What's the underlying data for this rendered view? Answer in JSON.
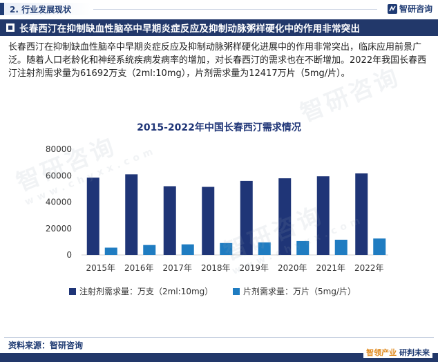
{
  "header": {
    "section": "2. 行业发展现状",
    "brand": "智研咨询",
    "headline": "长春西汀在抑制缺血性脑卒中早期炎症反应及抑制动脉粥样硬化中的作用非常突出"
  },
  "body": {
    "paragraph": "长春西汀在抑制缺血性脑卒中早期炎症反应及抑制动脉粥样硬化进展中的作用非常突出，临床应用前景广泛。随着人口老龄化和神经系统疾病发病率的增加，对长春西汀的需求也在不断增加。2022年我国长春西汀注射剂需求量为61692万支（2ml:10mg），片剂需求量为12417万片（5mg/片）。"
  },
  "chart_data": {
    "type": "bar",
    "title": "2015-2022年中国长春西汀需求情况",
    "categories": [
      "2015年",
      "2016年",
      "2017年",
      "2018年",
      "2019年",
      "2020年",
      "2021年",
      "2022年"
    ],
    "series": [
      {
        "name": "注射剂需求量：万支（2ml:10mg）",
        "color": "#1f3577",
        "values": [
          58500,
          61000,
          52000,
          51500,
          56000,
          58000,
          59500,
          61692
        ]
      },
      {
        "name": "片剂需求量：万片（5mg/片）",
        "color": "#1f7cc1",
        "values": [
          5500,
          7500,
          8000,
          9000,
          9500,
          10500,
          11500,
          12417
        ]
      }
    ],
    "ylim": [
      0,
      80000
    ],
    "yticks": [
      0,
      20000,
      40000,
      60000,
      80000
    ],
    "grid": false,
    "legend": "bottom"
  },
  "watermark": {
    "text": "智研咨询",
    "sub": "www.chyxx.com"
  },
  "footer": {
    "source": "资料来源：智研咨询",
    "slogan_left": "智领产业",
    "slogan_right": "研判未来"
  }
}
